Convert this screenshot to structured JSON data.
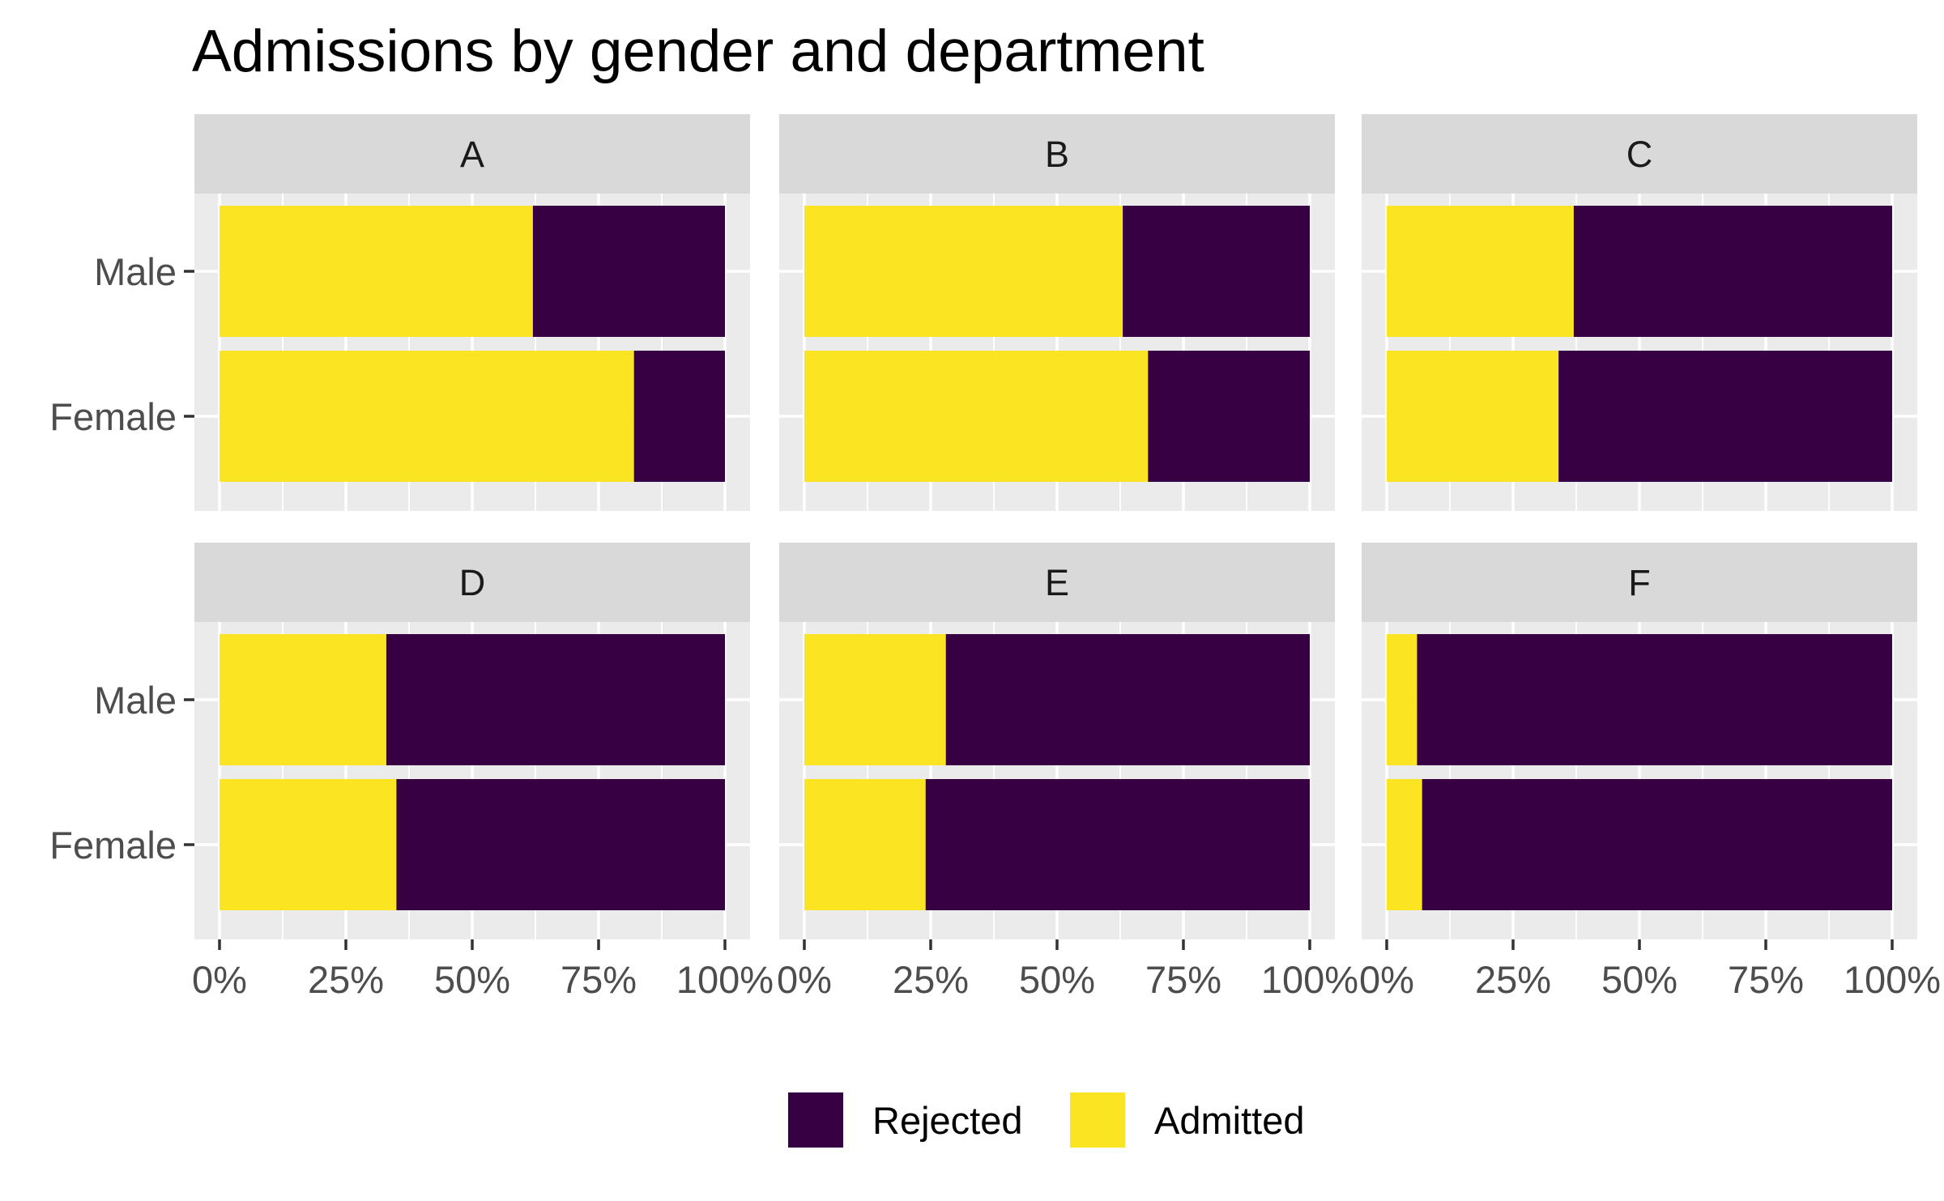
{
  "chart_data": {
    "type": "bar",
    "title": "Admissions by gender and department",
    "orientation": "horizontal",
    "stacked": "fill",
    "facets": [
      "A",
      "B",
      "C",
      "D",
      "E",
      "F"
    ],
    "categories": [
      "Male",
      "Female"
    ],
    "series": [
      {
        "name": "Rejected",
        "color": "#360042",
        "values": {
          "A": [
            0.38,
            0.18
          ],
          "B": [
            0.37,
            0.32
          ],
          "C": [
            0.63,
            0.66
          ],
          "D": [
            0.67,
            0.65
          ],
          "E": [
            0.72,
            0.76
          ],
          "F": [
            0.94,
            0.93
          ]
        }
      },
      {
        "name": "Admitted",
        "color": "#FBE422",
        "values": {
          "A": [
            0.62,
            0.82
          ],
          "B": [
            0.63,
            0.68
          ],
          "C": [
            0.37,
            0.34
          ],
          "D": [
            0.33,
            0.35
          ],
          "E": [
            0.28,
            0.24
          ],
          "F": [
            0.06,
            0.07
          ]
        }
      }
    ],
    "xticks": [
      "0%",
      "25%",
      "50%",
      "75%",
      "100%"
    ],
    "xlim": [
      0,
      1
    ],
    "xlabel": "",
    "ylabel": "",
    "grid": true,
    "legend_position": "bottom",
    "legend_entries": [
      "Rejected",
      "Admitted"
    ],
    "colors": {
      "panel_background": "#EBEBEB",
      "strip_background": "#D9D9D9",
      "grid": "#FFFFFF"
    }
  }
}
